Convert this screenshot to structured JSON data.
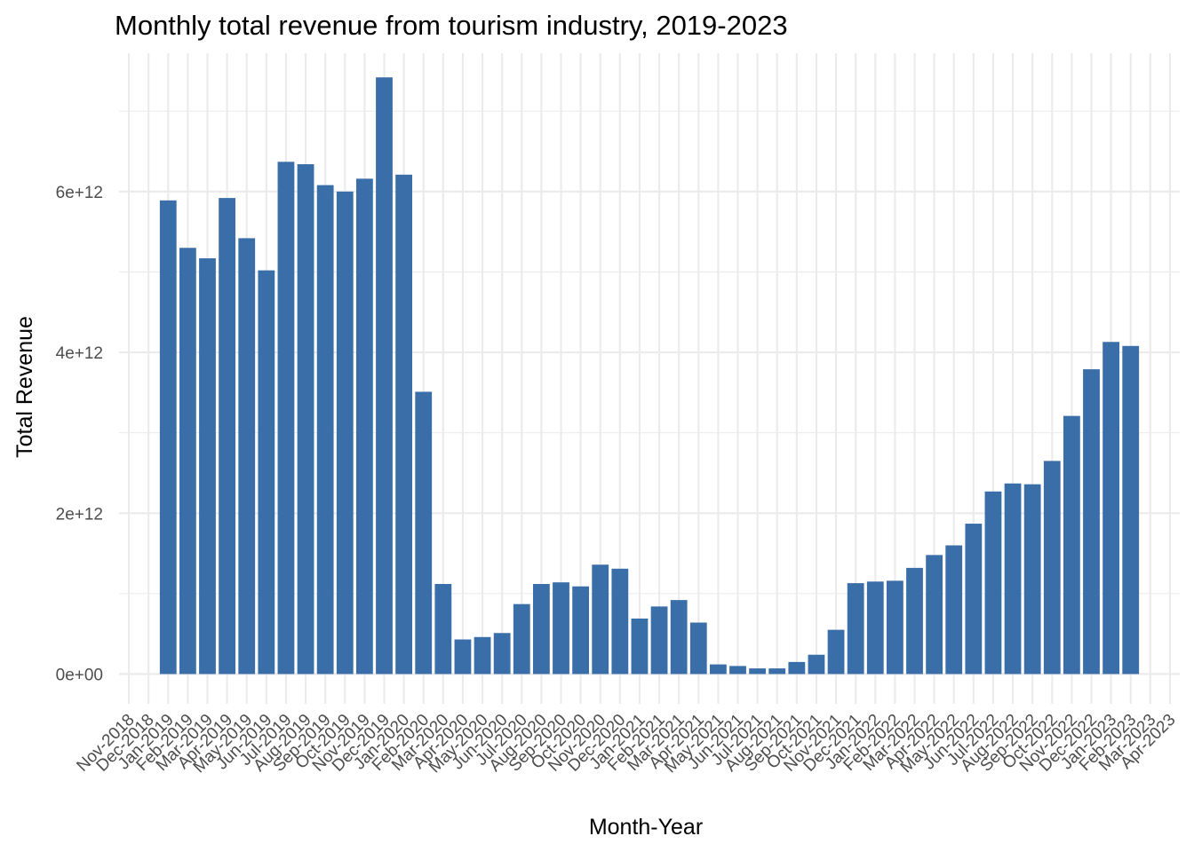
{
  "chart_data": {
    "type": "bar",
    "title": "Monthly total revenue from tourism industry, 2019-2023",
    "xlabel": "Month-Year",
    "ylabel": "Total Revenue",
    "x_ticks": [
      "Nov-2018",
      "Dec-2018",
      "Jan-2019",
      "Feb-2019",
      "Mar-2019",
      "Apr-2019",
      "May-2019",
      "Jun-2019",
      "Jul-2019",
      "Aug-2019",
      "Sep-2019",
      "Oct-2019",
      "Nov-2019",
      "Dec-2019",
      "Jan-2020",
      "Feb-2020",
      "Mar-2020",
      "Apr-2020",
      "May-2020",
      "Jun-2020",
      "Jul-2020",
      "Aug-2020",
      "Sep-2020",
      "Oct-2020",
      "Nov-2020",
      "Dec-2020",
      "Jan-2021",
      "Feb-2021",
      "Mar-2021",
      "Apr-2021",
      "May-2021",
      "Jun-2021",
      "Jul-2021",
      "Aug-2021",
      "Sep-2021",
      "Oct-2021",
      "Nov-2021",
      "Dec-2021",
      "Jan-2022",
      "Feb-2022",
      "Mar-2022",
      "Apr-2022",
      "May-2022",
      "Jun-2022",
      "Jul-2022",
      "Aug-2022",
      "Sep-2022",
      "Oct-2022",
      "Nov-2022",
      "Dec-2022",
      "Jan-2023",
      "Feb-2023",
      "Mar-2023",
      "Apr-2023"
    ],
    "y_ticks": [
      {
        "value": 0,
        "label": "0e+00"
      },
      {
        "value": 2000000000000,
        "label": "2e+12"
      },
      {
        "value": 4000000000000,
        "label": "4e+12"
      },
      {
        "value": 6000000000000,
        "label": "6e+12"
      }
    ],
    "ylim": [
      -370000000000,
      7720000000000
    ],
    "bar_color": "#3a6ea8",
    "grid": true,
    "values": [
      5890000000000.0,
      5300000000000.0,
      5170000000000.0,
      5920000000000.0,
      5420000000000.0,
      5020000000000.0,
      6370000000000.0,
      6340000000000.0,
      6080000000000.0,
      6000000000000.0,
      6160000000000.0,
      7420000000000.0,
      6210000000000.0,
      3510000000000.0,
      1120000000000.0,
      430000000000.0,
      460000000000.0,
      510000000000.0,
      870000000000.0,
      1120000000000.0,
      1140000000000.0,
      1090000000000.0,
      1360000000000.0,
      1310000000000.0,
      690000000000.0,
      840000000000.0,
      920000000000.0,
      640000000000.0,
      120000000000.0,
      100000000000.0,
      70000000000.0,
      70000000000.0,
      150000000000.0,
      240000000000.0,
      550000000000.0,
      1130000000000.0,
      1150000000000.0,
      1160000000000.0,
      1320000000000.0,
      1480000000000.0,
      1600000000000.0,
      1870000000000.0,
      2270000000000.0,
      2370000000000.0,
      2360000000000.0,
      2650000000000.0,
      3210000000000.0,
      3790000000000.0,
      4130000000000.0,
      4080000000000.0
    ],
    "first_bar_category": "Jan-2019"
  }
}
